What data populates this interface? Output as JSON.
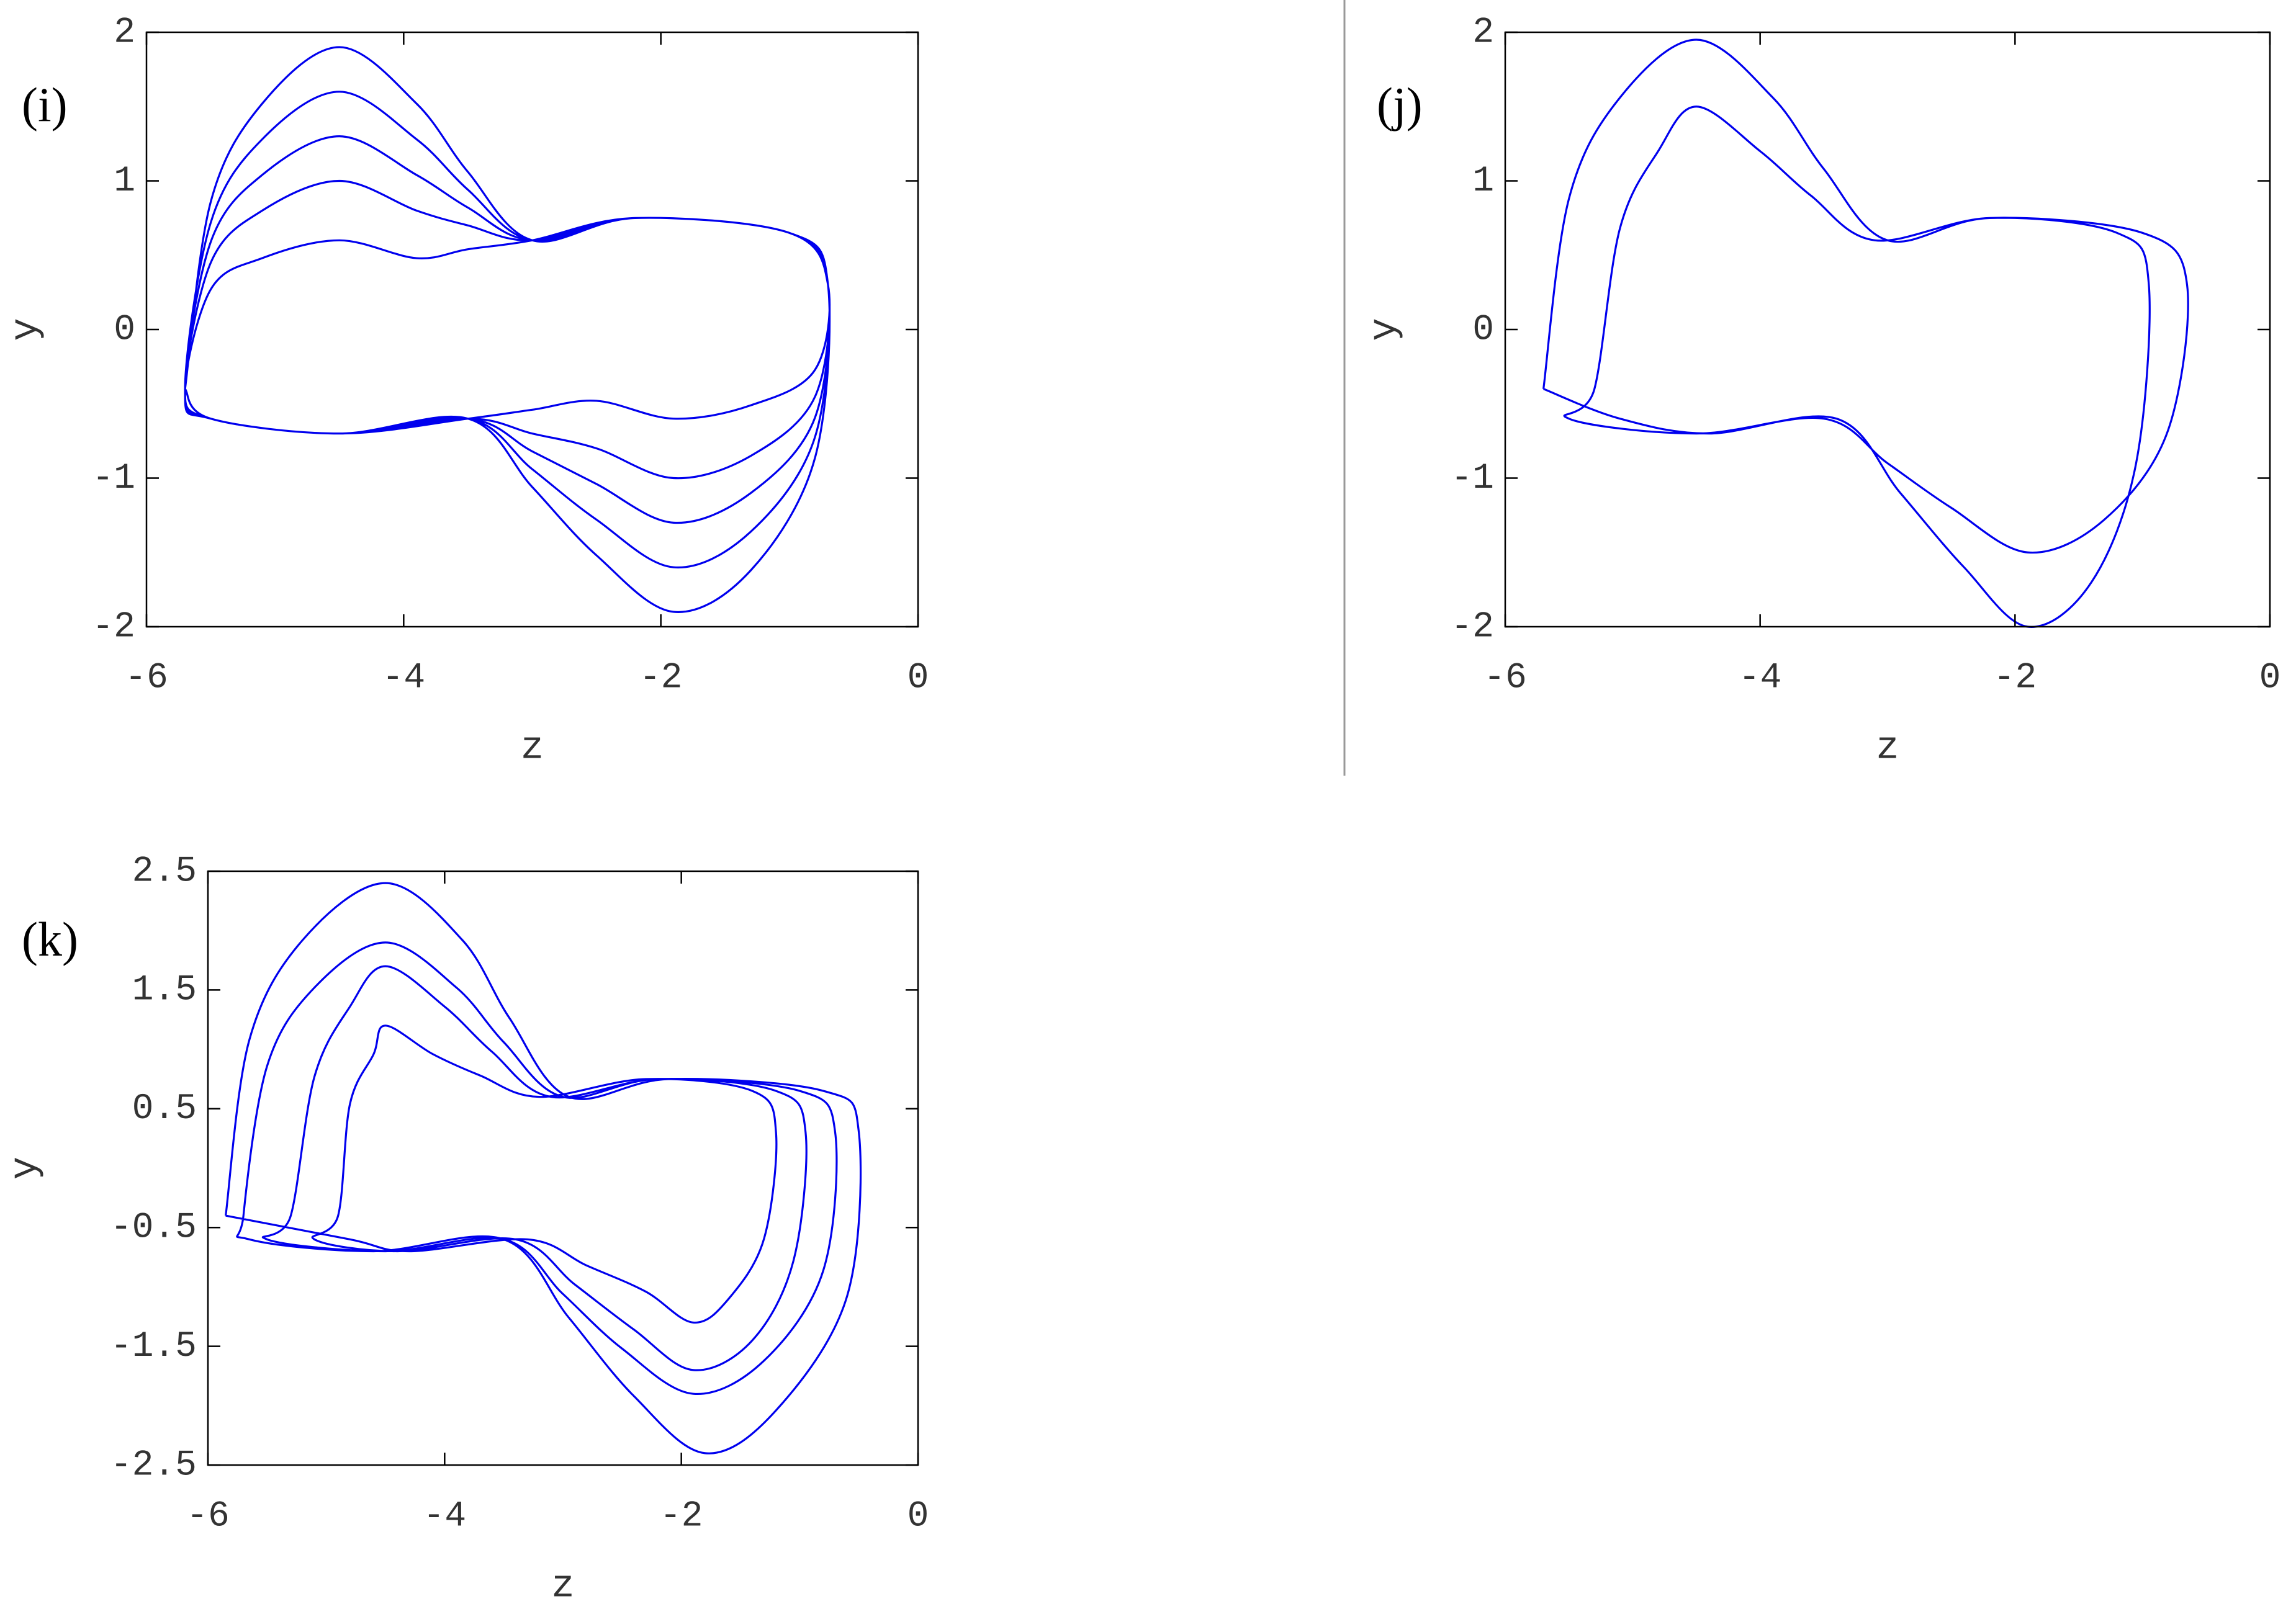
{
  "chart_data": [
    {
      "type": "line",
      "title": "(i)",
      "x_label": "z",
      "y_label": "y",
      "xlim": [
        -6,
        0
      ],
      "ylim": [
        -2,
        2
      ],
      "xticks": [
        -6,
        -4,
        -2,
        0
      ],
      "yticks": [
        -2,
        -1,
        0,
        1,
        2
      ],
      "series": [
        {
          "color": "#0000ee",
          "x": [
            -5.7,
            -5.5,
            -5.1,
            -4.5,
            -3.9,
            -3.5,
            -3.0,
            -2.2,
            -1.0,
            -0.7,
            -0.8,
            -1.3,
            -1.9,
            -2.5,
            -3.0,
            -3.5,
            -4.5,
            -5.5,
            -5.7,
            -5.5,
            -5.1,
            -4.5,
            -3.9,
            -3.5,
            -3.0,
            -2.2,
            -1.0,
            -0.7,
            -0.8,
            -1.3,
            -1.9,
            -2.5,
            -3.0,
            -3.5,
            -4.5,
            -5.5,
            -5.7,
            -5.5,
            -5.1,
            -4.5,
            -3.9,
            -3.5,
            -3.0,
            -2.2,
            -1.0,
            -0.7,
            -0.8,
            -1.3,
            -1.9,
            -2.5,
            -3.0,
            -3.5,
            -4.5,
            -5.5,
            -5.7,
            -5.5,
            -5.1,
            -4.5,
            -3.9,
            -3.5,
            -3.0,
            -2.2,
            -1.0,
            -0.7,
            -0.8,
            -1.3,
            -1.9,
            -2.5,
            -3.0,
            -3.5,
            -4.5,
            -5.5,
            -5.7,
            -5.5,
            -5.1,
            -4.5,
            -3.9,
            -3.5,
            -3.0,
            -2.2,
            -1.0,
            -0.7,
            -0.8,
            -1.3,
            -1.9,
            -2.5,
            -3.0,
            -3.5,
            -4.5,
            -5.5,
            -5.7
          ],
          "values": [
            -0.4,
            0.86,
            1.52,
            1.9,
            1.52,
            1.06,
            0.6,
            0.75,
            0.65,
            0.3,
            -0.72,
            -1.36,
            -1.6,
            -1.28,
            -0.94,
            -0.6,
            -0.7,
            -0.6,
            -0.4,
            0.59,
            1.04,
            1.3,
            1.04,
            0.82,
            0.6,
            0.75,
            0.65,
            0.3,
            -0.86,
            -1.62,
            -1.9,
            -1.52,
            -1.06,
            -0.6,
            -0.7,
            -0.6,
            -0.4,
            0.72,
            1.28,
            1.6,
            1.28,
            0.94,
            0.6,
            0.75,
            0.65,
            0.3,
            -0.45,
            -0.85,
            -1.0,
            -0.8,
            -0.7,
            -0.6,
            -0.7,
            -0.6,
            -0.4,
            0.27,
            0.48,
            0.6,
            0.48,
            0.54,
            0.6,
            0.75,
            0.65,
            0.3,
            -0.59,
            -1.1,
            -1.3,
            -1.04,
            -0.82,
            -0.6,
            -0.7,
            -0.6,
            -0.4,
            0.45,
            0.8,
            1.0,
            0.8,
            0.7,
            0.6,
            0.75,
            0.65,
            0.3,
            -0.27,
            -0.51,
            -0.6,
            -0.48,
            -0.54,
            -0.6,
            -0.7,
            -0.6,
            -0.4
          ]
        }
      ]
    },
    {
      "type": "line",
      "title": "(j)",
      "x_label": "z",
      "y_label": "y",
      "xlim": [
        -6,
        0
      ],
      "ylim": [
        -2,
        2
      ],
      "xticks": [
        -6,
        -4,
        -2,
        0
      ],
      "yticks": [
        -2,
        -1,
        0,
        1,
        2
      ],
      "series": [
        {
          "color": "#0000ee",
          "x": [
            -5.7,
            -5.5,
            -5.1,
            -4.5,
            -3.9,
            -3.5,
            -3.0,
            -2.2,
            -1.0,
            -0.65,
            -0.8,
            -1.3,
            -1.9,
            -2.5,
            -3.0,
            -3.5,
            -4.5,
            -5.5,
            -5.3,
            -5.1,
            -4.8,
            -4.5,
            -4.0,
            -3.6,
            -3.1,
            -2.2,
            -1.2,
            -0.95,
            -1.05,
            -1.4,
            -1.9,
            -2.4,
            -2.9,
            -3.4,
            -4.4,
            -5.1,
            -5.7
          ],
          "values": [
            -0.4,
            0.88,
            1.56,
            1.95,
            1.56,
            1.08,
            0.6,
            0.75,
            0.65,
            0.3,
            -0.68,
            -1.28,
            -1.5,
            -1.2,
            -0.9,
            -0.6,
            -0.7,
            -0.6,
            -0.4,
            0.68,
            1.2,
            1.5,
            1.2,
            0.9,
            0.6,
            0.75,
            0.65,
            0.3,
            -0.9,
            -1.7,
            -2.0,
            -1.6,
            -1.1,
            -0.6,
            -0.7,
            -0.6,
            -0.4
          ]
        }
      ]
    },
    {
      "type": "line",
      "title": "(k)",
      "x_label": "z",
      "y_label": "y",
      "xlim": [
        -6,
        0
      ],
      "ylim": [
        -2.5,
        2.5
      ],
      "xticks": [
        -6,
        -4,
        -2,
        0
      ],
      "yticks": [
        -2.5,
        -1.5,
        -0.5,
        0.5,
        1.5,
        2.5
      ],
      "series": [
        {
          "color": "#0000ee",
          "x": [
            -5.85,
            -5.65,
            -5.2,
            -4.5,
            -3.85,
            -3.45,
            -2.95,
            -2.1,
            -0.8,
            -0.5,
            -0.6,
            -1.2,
            -1.8,
            -2.4,
            -2.95,
            -3.5,
            -4.6,
            -5.65,
            -5.7,
            -5.5,
            -5.1,
            -4.5,
            -3.9,
            -3.5,
            -3.0,
            -2.2,
            -1.0,
            -0.7,
            -0.8,
            -1.3,
            -1.9,
            -2.5,
            -3.0,
            -3.5,
            -4.5,
            -5.5,
            -5.3,
            -5.1,
            -4.8,
            -4.5,
            -4.0,
            -3.6,
            -3.1,
            -2.2,
            -1.2,
            -0.95,
            -1.05,
            -1.4,
            -1.9,
            -2.4,
            -2.9,
            -3.4,
            -4.4,
            -5.1,
            -4.9,
            -4.8,
            -4.6,
            -4.5,
            -4.1,
            -3.7,
            -3.2,
            -2.3,
            -1.4,
            -1.2,
            -1.3,
            -1.6,
            -1.9,
            -2.3,
            -2.8,
            -3.3,
            -4.3,
            -4.8,
            -5.85
          ],
          "values": [
            -0.4,
            1.08,
            1.92,
            2.4,
            1.92,
            1.26,
            0.6,
            0.75,
            0.65,
            0.3,
            -1.08,
            -2.04,
            -2.4,
            -1.92,
            -1.26,
            -0.6,
            -0.7,
            -0.6,
            -0.4,
            0.86,
            1.52,
            1.9,
            1.52,
            1.06,
            0.6,
            0.75,
            0.65,
            0.3,
            -0.86,
            -1.62,
            -1.9,
            -1.52,
            -1.06,
            -0.6,
            -0.7,
            -0.6,
            -0.4,
            0.77,
            1.36,
            1.7,
            1.36,
            0.98,
            0.6,
            0.75,
            0.65,
            0.3,
            -0.77,
            -1.45,
            -1.7,
            -1.36,
            -0.98,
            -0.6,
            -0.7,
            -0.6,
            -0.4,
            0.54,
            0.96,
            1.2,
            0.96,
            0.78,
            0.6,
            0.75,
            0.65,
            0.3,
            -0.59,
            -1.1,
            -1.3,
            -1.04,
            -0.82,
            -0.6,
            -0.7,
            -0.6,
            -0.4
          ]
        }
      ]
    }
  ]
}
